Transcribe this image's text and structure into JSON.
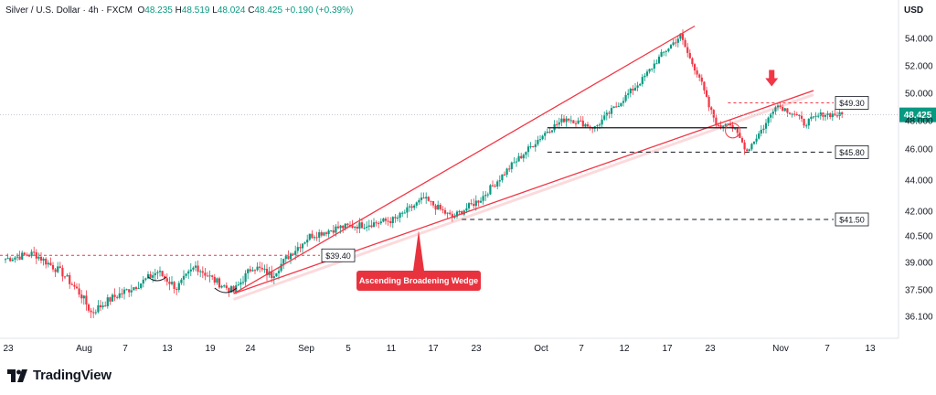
{
  "header": {
    "symbol": "Silver / U.S. Dollar · 4h · FXCM",
    "open_label": "O",
    "open": "48.235",
    "high_label": "H",
    "high": "48.519",
    "low_label": "L",
    "low": "48.024",
    "close_label": "C",
    "close": "48.425",
    "change": "+0.190 (+0.39%)"
  },
  "currency": "USD",
  "brand": "TradingView",
  "colors": {
    "up": "#089981",
    "down": "#f23645",
    "line": "#f23645",
    "price_tag": "#089981",
    "label_bg": "#e8333f"
  },
  "chart_data": {
    "type": "candlestick",
    "x_ticks": [
      "23",
      "Aug",
      "7",
      "13",
      "19",
      "24",
      "Sep",
      "5",
      "11",
      "17",
      "23",
      "Oct",
      "7",
      "12",
      "17",
      "23",
      "Nov",
      "7",
      "13"
    ],
    "y_ticks": [
      "54.000",
      "52.000",
      "50.000",
      "48.000",
      "46.000",
      "44.000",
      "42.000",
      "40.500",
      "39.000",
      "37.500",
      "36.100"
    ],
    "last_price": "48.425",
    "levels": [
      {
        "label": "$49.30",
        "value": 49.3,
        "style": "dashed-red"
      },
      {
        "label": "$45.80",
        "value": 45.8,
        "style": "dashed-black"
      },
      {
        "label": "$41.50",
        "value": 41.5,
        "style": "dashed-black"
      },
      {
        "label": "$39.40",
        "value": 39.4,
        "style": "dashed-red"
      }
    ],
    "annotation": "Ascending Broadening Wedge",
    "path": [
      [
        0,
        39.2
      ],
      [
        3,
        39.5
      ],
      [
        6,
        38.4
      ],
      [
        8,
        37.2
      ],
      [
        9,
        36.3
      ],
      [
        11,
        37.0
      ],
      [
        14,
        37.8
      ],
      [
        16,
        38.5
      ],
      [
        18,
        37.6
      ],
      [
        20,
        38.8
      ],
      [
        22,
        38.0
      ],
      [
        24,
        37.4
      ],
      [
        26,
        38.8
      ],
      [
        28,
        38.3
      ],
      [
        30,
        39.5
      ],
      [
        32,
        40.5
      ],
      [
        35,
        41.0
      ],
      [
        38,
        41.2
      ],
      [
        41,
        41.5
      ],
      [
        44,
        42.8
      ],
      [
        47,
        41.6
      ],
      [
        50,
        42.8
      ],
      [
        53,
        44.8
      ],
      [
        55,
        46.0
      ],
      [
        57,
        47.3
      ],
      [
        59,
        48.2
      ],
      [
        62,
        47.5
      ],
      [
        65,
        49.6
      ],
      [
        67,
        51.0
      ],
      [
        69,
        52.8
      ],
      [
        71,
        54.2
      ],
      [
        72,
        52.5
      ],
      [
        73,
        51.2
      ],
      [
        74,
        49.0
      ],
      [
        75,
        47.5
      ],
      [
        76,
        48.0
      ],
      [
        77,
        47.0
      ],
      [
        78,
        45.9
      ],
      [
        80,
        47.8
      ],
      [
        81,
        49.2
      ],
      [
        83,
        48.5
      ],
      [
        84,
        47.8
      ],
      [
        86,
        48.5
      ],
      [
        88,
        48.4
      ]
    ]
  }
}
